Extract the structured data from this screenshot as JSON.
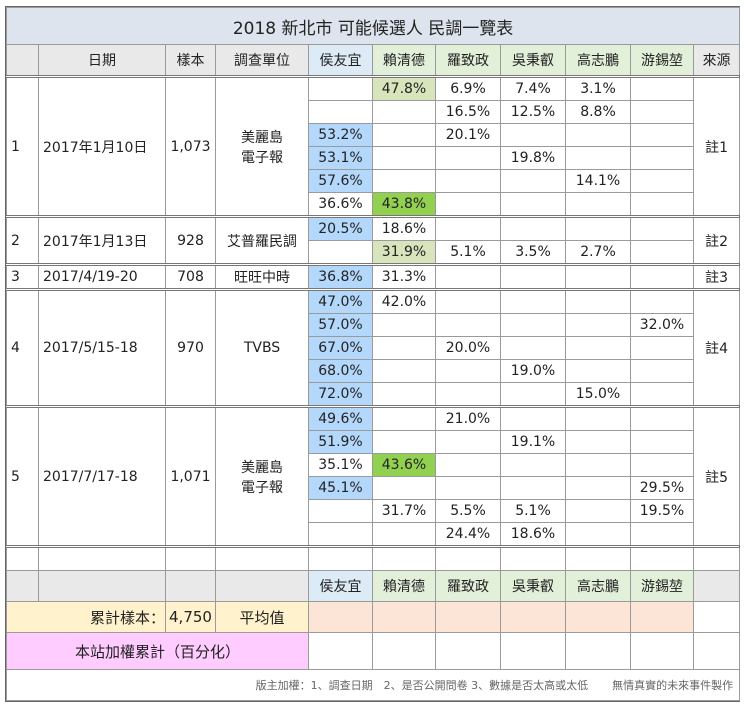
{
  "title": "2018 新北市 可能候選人 民調一覽表",
  "header": {
    "index": null,
    "date": "日期",
    "sample": "樣本",
    "unit": "調查單位",
    "candidates": [
      "侯友宜",
      "賴清德",
      "羅致政",
      "吳秉叡",
      "高志鵬",
      "游錫堃"
    ],
    "source": "來源"
  },
  "candidate_colors": [
    "#ddebf7",
    "#e2efd9",
    "#e2efd9",
    "#e2efd9",
    "#e2efd9",
    "#e2efd9"
  ],
  "groups": [
    {
      "index": "1",
      "date": "2017年1月10日",
      "sample": "1,073",
      "unit": [
        "美麗島",
        "電子報"
      ],
      "source": "註1",
      "rows": [
        {
          "cells": [
            null,
            "47.8%",
            "6.9%",
            "7.4%",
            "3.1%",
            null
          ],
          "highlight": {
            "column": 1,
            "color": "#d8e4bc"
          }
        },
        {
          "cells": [
            null,
            null,
            "16.5%",
            "12.5%",
            "8.8%",
            null
          ]
        },
        {
          "cells": [
            "53.2%",
            null,
            "20.1%",
            null,
            null,
            null
          ],
          "highlight": {
            "column": 0,
            "color": "#b4d8fb"
          }
        },
        {
          "cells": [
            "53.1%",
            null,
            null,
            "19.8%",
            null,
            null
          ],
          "highlight": {
            "column": 0,
            "color": "#b4d8fb"
          }
        },
        {
          "cells": [
            "57.6%",
            null,
            null,
            null,
            "14.1%",
            null
          ],
          "highlight": {
            "column": 0,
            "color": "#b4d8fb"
          }
        },
        {
          "cells": [
            "36.6%",
            "43.8%",
            null,
            null,
            null,
            null
          ],
          "highlight": {
            "column": 1,
            "color": "#92d050"
          }
        }
      ]
    },
    {
      "index": "2",
      "date": "2017年1月13日",
      "sample": "928",
      "unit": [
        "艾普羅民調"
      ],
      "source": "註2",
      "rows": [
        {
          "cells": [
            "20.5%",
            "18.6%",
            null,
            null,
            null,
            null
          ],
          "highlight": {
            "column": 0,
            "color": "#b4d8fb"
          }
        },
        {
          "cells": [
            null,
            "31.9%",
            "5.1%",
            "3.5%",
            "2.7%",
            null
          ],
          "highlight": {
            "column": 1,
            "color": "#d8e4bc"
          }
        }
      ]
    },
    {
      "index": "3",
      "date": "2017/4/19-20",
      "sample": "708",
      "unit": [
        "旺旺中時"
      ],
      "source": "註3",
      "rows": [
        {
          "cells": [
            "36.8%",
            "31.3%",
            null,
            null,
            null,
            null
          ],
          "highlight": {
            "column": 0,
            "color": "#b4d8fb"
          }
        }
      ]
    },
    {
      "index": "4",
      "date": "2017/5/15-18",
      "sample": "970",
      "unit": [
        "TVBS"
      ],
      "source": "註4",
      "rows": [
        {
          "cells": [
            "47.0%",
            "42.0%",
            null,
            null,
            null,
            null
          ],
          "highlight": {
            "column": 0,
            "color": "#b4d8fb"
          }
        },
        {
          "cells": [
            "57.0%",
            null,
            null,
            null,
            null,
            "32.0%"
          ],
          "highlight": {
            "column": 0,
            "color": "#b4d8fb"
          }
        },
        {
          "cells": [
            "67.0%",
            null,
            "20.0%",
            null,
            null,
            null
          ],
          "highlight": {
            "column": 0,
            "color": "#b4d8fb"
          }
        },
        {
          "cells": [
            "68.0%",
            null,
            null,
            "19.0%",
            null,
            null
          ],
          "highlight": {
            "column": 0,
            "color": "#b4d8fb"
          }
        },
        {
          "cells": [
            "72.0%",
            null,
            null,
            null,
            "15.0%",
            null
          ],
          "highlight": {
            "column": 0,
            "color": "#b4d8fb"
          }
        }
      ]
    },
    {
      "index": "5",
      "date": "2017/7/17-18",
      "sample": "1,071",
      "unit": [
        "美麗島",
        "電子報"
      ],
      "source": "註5",
      "rows": [
        {
          "cells": [
            "49.6%",
            null,
            "21.0%",
            null,
            null,
            null
          ],
          "highlight": {
            "column": 0,
            "color": "#b4d8fb"
          }
        },
        {
          "cells": [
            "51.9%",
            null,
            null,
            "19.1%",
            null,
            null
          ],
          "highlight": {
            "column": 0,
            "color": "#b4d8fb"
          }
        },
        {
          "cells": [
            "35.1%",
            "43.6%",
            null,
            null,
            null,
            null
          ],
          "highlight": {
            "column": 1,
            "color": "#92d050"
          }
        },
        {
          "cells": [
            "45.1%",
            null,
            null,
            null,
            null,
            "29.5%"
          ],
          "highlight": {
            "column": 0,
            "color": "#b4d8fb"
          }
        },
        {
          "cells": [
            null,
            "31.7%",
            "5.5%",
            "5.1%",
            null,
            "19.5%"
          ]
        },
        {
          "cells": [
            null,
            null,
            "24.4%",
            "18.6%",
            null,
            null
          ]
        }
      ]
    }
  ],
  "summary": {
    "sample_label": "累計樣本：",
    "sample_total": "4,750",
    "average_label": "平均值",
    "color": "#fff2cc",
    "cell_color": "#fce4d6"
  },
  "weighted": {
    "label": "本站加權累計（百分化）",
    "color": "#ffccff"
  },
  "footer": {
    "note": "版主加權：1、調查日期　2、是否公開問卷 3、數據是否太高或太低",
    "credit": "無情真實的未來事件製作"
  }
}
